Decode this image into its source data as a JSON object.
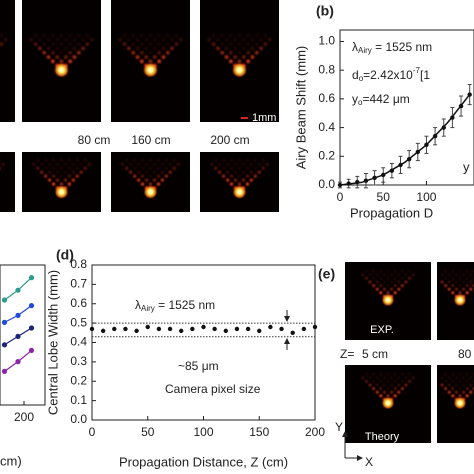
{
  "panels": {
    "b": "(b)",
    "d": "(d)",
    "e": "(e)"
  },
  "images_a": {
    "labels": [
      "80 cm",
      "160 cm",
      "200 cm"
    ],
    "scale_bar": "1mm"
  },
  "images_e": {
    "exp": "EXP.",
    "theory": "Theory",
    "z_prefix": "Z=",
    "z_labels": [
      "5 cm",
      "80"
    ],
    "axis_y": "Y",
    "axis_x": "X"
  },
  "chart_data": [
    {
      "type": "scatter",
      "ylabel": "Airy Beam Shift (mm)",
      "xlabel": "Propagation D",
      "xlim": [
        0,
        155
      ],
      "ylim": [
        0,
        1.08
      ],
      "xticks": [
        0,
        50,
        100
      ],
      "yticks": [
        {
          "value": 0,
          "label": "0.0"
        },
        {
          "value": 0.2,
          "label": "0.2"
        },
        {
          "value": 0.4,
          "label": "0.4"
        },
        {
          "value": 0.6,
          "label": "0.6"
        },
        {
          "value": 0.8,
          "label": "0.8"
        },
        {
          "value": 1.0,
          "label": "1.0"
        }
      ],
      "color": "#111111",
      "x": [
        0,
        10,
        20,
        30,
        40,
        50,
        60,
        70,
        80,
        90,
        100,
        110,
        120,
        130,
        140,
        150
      ],
      "values": [
        0.0,
        0.01,
        0.02,
        0.03,
        0.05,
        0.07,
        0.1,
        0.14,
        0.18,
        0.23,
        0.28,
        0.34,
        0.4,
        0.47,
        0.55,
        0.63
      ],
      "errors": [
        0.02,
        0.03,
        0.04,
        0.05,
        0.05,
        0.05,
        0.05,
        0.06,
        0.06,
        0.06,
        0.06,
        0.06,
        0.06,
        0.07,
        0.07,
        0.07
      ],
      "fit": {
        "x": [
          0,
          25,
          50,
          75,
          100,
          125,
          150
        ],
        "values": [
          0.0,
          0.018,
          0.07,
          0.158,
          0.28,
          0.438,
          0.63
        ]
      },
      "annotations": {
        "lambda": {
          "symbol": "λ",
          "sub": "Airy",
          "rest": " = 1525 nm"
        },
        "d": {
          "symbol": "d",
          "sub": "o",
          "rest": "=2.42x10",
          "sup": "-7",
          "tail": "[1"
        },
        "y": {
          "symbol": "y",
          "sub": "o",
          "rest": "=442 μm"
        },
        "cut": "y"
      }
    },
    {
      "type": "line",
      "xlabel": "cm)",
      "xlim": [
        184,
        214
      ],
      "ylim": [
        0,
        1
      ],
      "xticks": [
        200
      ],
      "x": [
        187,
        196,
        205
      ],
      "series": [
        {
          "color": "#2a9d8f",
          "values": [
            0.75,
            0.82,
            0.91
          ]
        },
        {
          "color": "#1f4bd6",
          "values": [
            0.59,
            0.64,
            0.71
          ]
        },
        {
          "color": "#1a237e",
          "values": [
            0.43,
            0.49,
            0.55
          ]
        },
        {
          "color": "#8e24aa",
          "values": [
            0.24,
            0.31,
            0.39
          ]
        }
      ]
    },
    {
      "type": "scatter",
      "ylabel": "Central Lobe Width (mm)",
      "xlabel": "Propagation Distance, Z (cm)",
      "xlim": [
        0,
        200
      ],
      "ylim": [
        0,
        0.8
      ],
      "xticks": [
        0,
        50,
        100,
        150,
        200
      ],
      "yticks": [
        {
          "value": 0,
          "label": "0.0"
        },
        {
          "value": 0.1,
          "label": "0.1"
        },
        {
          "value": 0.2,
          "label": "0.2"
        },
        {
          "value": 0.3,
          "label": "0.3"
        },
        {
          "value": 0.4,
          "label": "0.4"
        },
        {
          "value": 0.5,
          "label": "0.5"
        },
        {
          "value": 0.6,
          "label": "0.6"
        },
        {
          "value": 0.7,
          "label": "0.7"
        },
        {
          "value": 0.8,
          "label": "0.8"
        }
      ],
      "color": "#111111",
      "x": [
        0,
        10,
        20,
        30,
        40,
        50,
        60,
        70,
        80,
        90,
        100,
        110,
        120,
        130,
        140,
        150,
        160,
        170,
        180,
        190,
        200
      ],
      "values": [
        0.47,
        0.46,
        0.47,
        0.47,
        0.46,
        0.48,
        0.47,
        0.47,
        0.46,
        0.47,
        0.48,
        0.47,
        0.46,
        0.47,
        0.47,
        0.46,
        0.48,
        0.47,
        0.45,
        0.47,
        0.48
      ],
      "hlines": [
        0.5,
        0.43
      ],
      "annotations": {
        "lambda": {
          "symbol": "λ",
          "sub": "Airy",
          "rest": " = 1525 nm"
        },
        "width": "~85 μm",
        "pixel": "Camera pixel size"
      }
    }
  ]
}
